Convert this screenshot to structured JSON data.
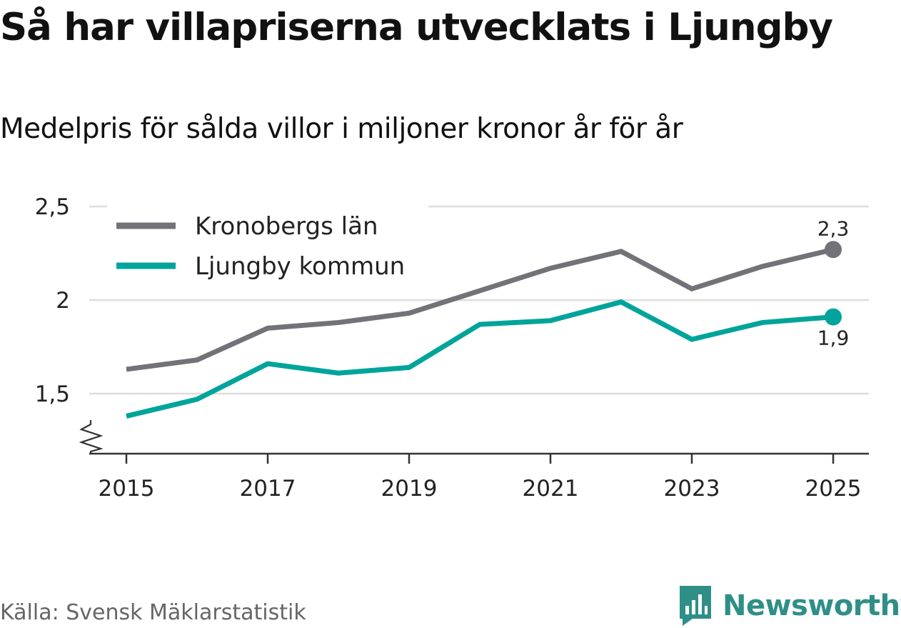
{
  "title": "Så har villapriserna utvecklats i Ljungby",
  "subtitle": "Medelpris för sålda villor i miljoner kronor år för år",
  "source": "Källa: Svensk Mäklarstatistik",
  "brand": "Newsworthy",
  "colors": {
    "kronoberg": "#737278",
    "ljungby": "#00a49a",
    "grid": "#dddddd",
    "axis": "#333333"
  },
  "chart_data": {
    "type": "line",
    "title": "Så har villapriserna utvecklats i Ljungby",
    "subtitle": "Medelpris för sålda villor i miljoner kronor år för år",
    "xlabel": "",
    "ylabel": "",
    "x": [
      2015,
      2016,
      2017,
      2018,
      2019,
      2020,
      2021,
      2022,
      2023,
      2024,
      2025
    ],
    "ylim": [
      1.17,
      2.5
    ],
    "yticks": [
      1.5,
      2,
      2.5
    ],
    "ytick_labels": [
      "1,5",
      "2",
      "2,5"
    ],
    "xticks": [
      2015,
      2017,
      2019,
      2021,
      2023,
      2025
    ],
    "xtick_labels": [
      "2015",
      "2017",
      "2019",
      "2021",
      "2023",
      "2025"
    ],
    "legend_position": "top-left",
    "axis_break": true,
    "series": [
      {
        "name": "Kronobergs län",
        "key": "kronoberg",
        "values": [
          1.63,
          1.68,
          1.85,
          1.88,
          1.93,
          2.05,
          2.17,
          2.26,
          2.06,
          2.18,
          2.27
        ],
        "end_label": "2,3"
      },
      {
        "name": "Ljungby kommun",
        "key": "ljungby",
        "values": [
          1.38,
          1.47,
          1.66,
          1.61,
          1.64,
          1.87,
          1.89,
          1.99,
          1.79,
          1.88,
          1.91
        ],
        "end_label": "1,9"
      }
    ]
  }
}
